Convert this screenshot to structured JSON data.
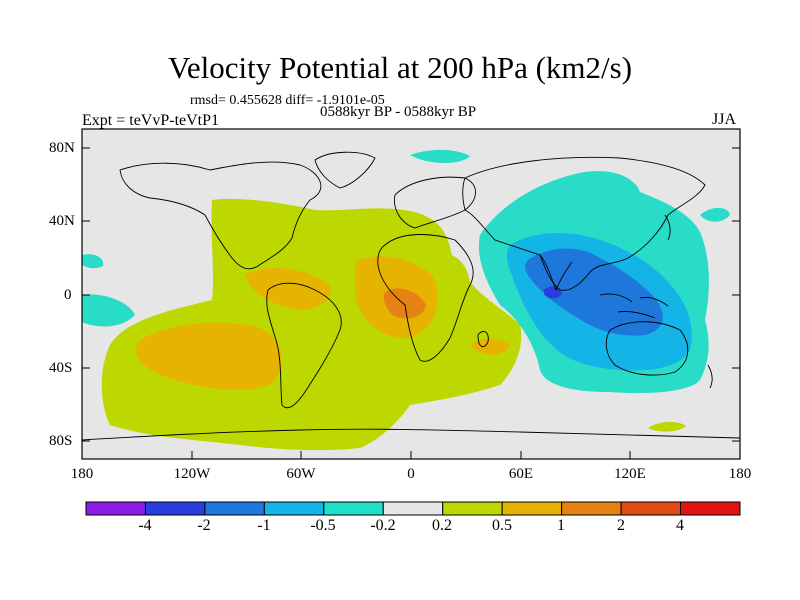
{
  "title": "Velocity Potential at 200 hPa (km2/s)",
  "stats": "rmsd= 0.455628 diff= -1.9101e-05",
  "period": "0588kyr BP - 0588kyr BP",
  "expt": "Expt = teVvP-teVtP1",
  "season": "JJA",
  "lat_ticks": [
    "80N",
    "40N",
    "0",
    "40S",
    "80S"
  ],
  "lon_ticks": [
    "180",
    "120W",
    "60W",
    "0",
    "60E",
    "120E",
    "180"
  ],
  "colorbar": {
    "labels": [
      "-4",
      "-2",
      "-1",
      "-0.5",
      "-0.2",
      "0.2",
      "0.5",
      "1",
      "2",
      "4"
    ],
    "colors": [
      "#8a1ee6",
      "#2a3ee0",
      "#1e78e0",
      "#14b4e8",
      "#1ee0c8",
      "#e6e6e6",
      "#bcd800",
      "#e6b400",
      "#e68214",
      "#e04a14",
      "#e01414"
    ]
  },
  "map_colors": {
    "background": "#e6e6e6",
    "neg_02": "#28dcc8",
    "neg_05": "#14b4e6",
    "neg_1": "#1e78dc",
    "neg_2": "#2a3ee0",
    "pos_02": "#bcd800",
    "pos_05": "#e6b400",
    "pos_1": "#e68214"
  }
}
